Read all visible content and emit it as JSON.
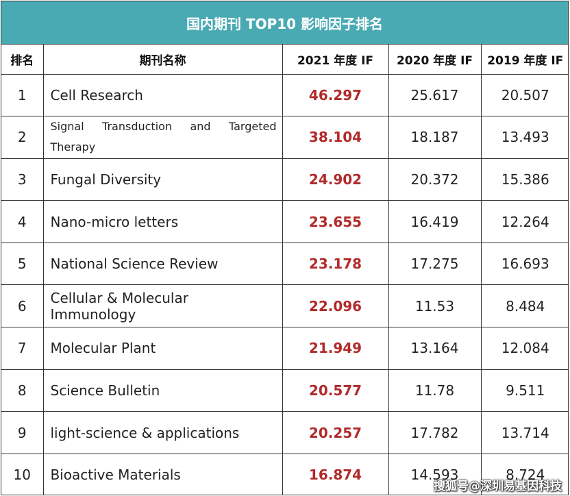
{
  "title": "国内期刊 TOP10 影响因子排名",
  "headers": {
    "rank": "排名",
    "name": "期刊名称",
    "if2021": "2021 年度 IF",
    "if2020": "2020 年度 IF",
    "if2019": "2019 年度 IF"
  },
  "rows": [
    {
      "rank": "1",
      "name": "Cell Research",
      "if2021": "46.297",
      "if2020": "25.617",
      "if2019": "20.507"
    },
    {
      "rank": "2",
      "name": "Signal Transduction and Targeted Therapy",
      "if2021": "38.104",
      "if2020": "18.187",
      "if2019": "13.493"
    },
    {
      "rank": "3",
      "name": "Fungal Diversity",
      "if2021": "24.902",
      "if2020": "20.372",
      "if2019": "15.386"
    },
    {
      "rank": "4",
      "name": "Nano-micro letters",
      "if2021": "23.655",
      "if2020": "16.419",
      "if2019": "12.264"
    },
    {
      "rank": "5",
      "name": "National Science Review",
      "if2021": "23.178",
      "if2020": "17.275",
      "if2019": "16.693"
    },
    {
      "rank": "6",
      "name": "Cellular & Molecular Immunology",
      "if2021": "22.096",
      "if2020": "11.53",
      "if2019": "8.484"
    },
    {
      "rank": "7",
      "name": "Molecular Plant",
      "if2021": "21.949",
      "if2020": "13.164",
      "if2019": "12.084"
    },
    {
      "rank": "8",
      "name": "Science Bulletin",
      "if2021": "20.577",
      "if2020": "11.78",
      "if2019": "9.511"
    },
    {
      "rank": "9",
      "name": "light-science & applications",
      "if2021": "20.257",
      "if2020": "17.782",
      "if2019": "13.714"
    },
    {
      "rank": "10",
      "name": "Bioactive Materials",
      "if2021": "16.874",
      "if2020": "14.593",
      "if2019": "8.724"
    }
  ],
  "watermark": "搜狐号@深圳易基因科技",
  "colors": {
    "title_bg": "#4aaab3",
    "highlight": "#b22a2a"
  }
}
